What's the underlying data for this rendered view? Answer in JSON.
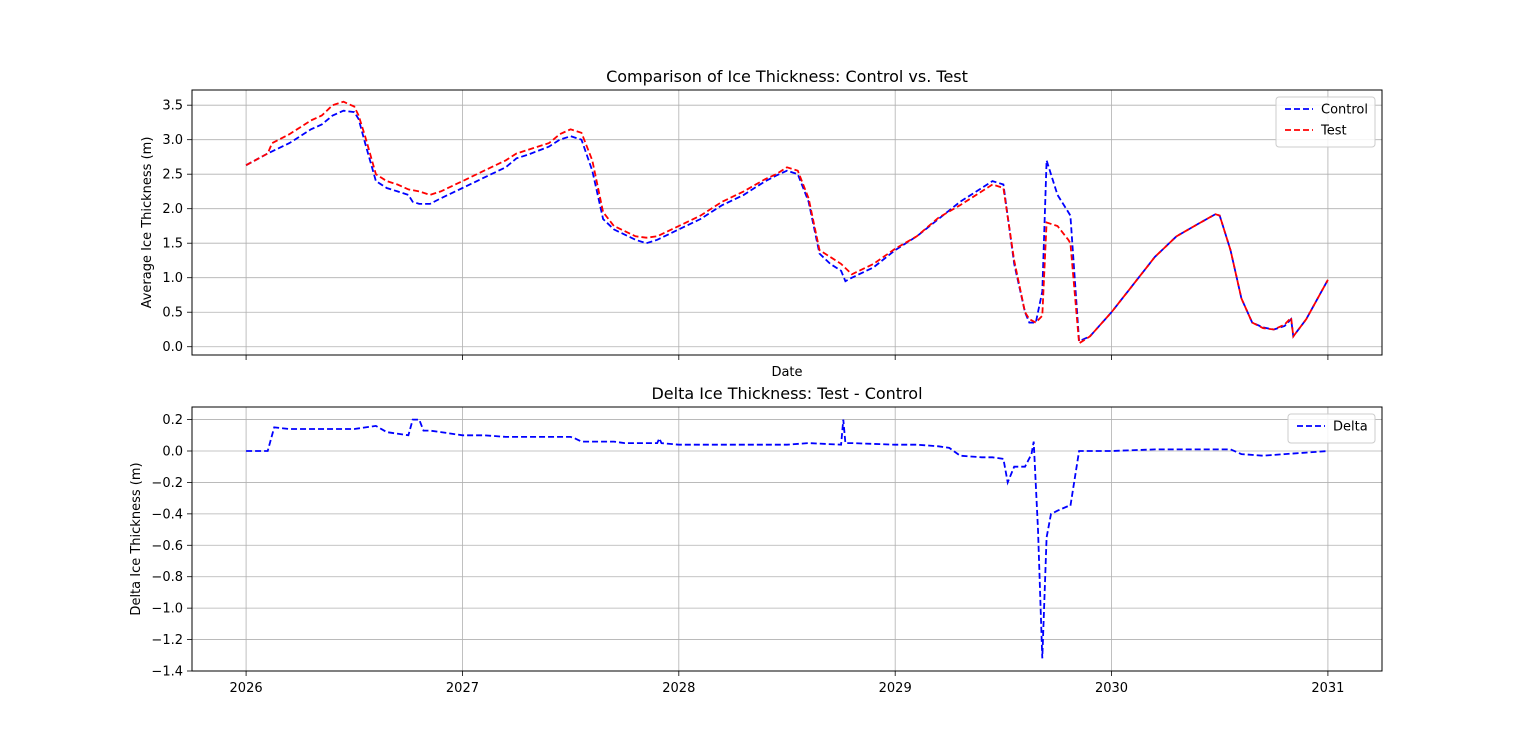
{
  "chart_data": [
    {
      "type": "line",
      "title": "Comparison of Ice Thickness: Control vs. Test",
      "xlabel": "Date",
      "ylabel": "Average Ice Thickness (m)",
      "xlim": [
        2025.75,
        2031.25
      ],
      "ylim": [
        -0.12,
        3.72
      ],
      "x_ticks": [
        2026,
        2027,
        2028,
        2029,
        2030,
        2031
      ],
      "x_tick_labels_shown": false,
      "y_ticks": [
        0.0,
        0.5,
        1.0,
        1.5,
        2.0,
        2.5,
        3.0,
        3.5
      ],
      "y_tick_labels": [
        "0.0",
        "0.5",
        "1.0",
        "1.5",
        "2.0",
        "2.5",
        "3.0",
        "3.5"
      ],
      "grid": true,
      "legend_position": "top-right",
      "series": [
        {
          "name": "Control",
          "color": "#0000ff",
          "style": "dashed",
          "x": [
            2026.0,
            2026.1,
            2026.2,
            2026.3,
            2026.35,
            2026.4,
            2026.45,
            2026.5,
            2026.52,
            2026.55,
            2026.6,
            2026.65,
            2026.7,
            2026.75,
            2026.77,
            2026.8,
            2026.85,
            2026.9,
            2027.0,
            2027.1,
            2027.2,
            2027.25,
            2027.3,
            2027.4,
            2027.45,
            2027.5,
            2027.55,
            2027.6,
            2027.65,
            2027.7,
            2027.8,
            2027.85,
            2027.9,
            2028.0,
            2028.1,
            2028.2,
            2028.3,
            2028.4,
            2028.45,
            2028.5,
            2028.55,
            2028.6,
            2028.65,
            2028.7,
            2028.75,
            2028.77,
            2028.8,
            2028.9,
            2029.0,
            2029.1,
            2029.2,
            2029.3,
            2029.4,
            2029.45,
            2029.5,
            2029.55,
            2029.6,
            2029.62,
            2029.65,
            2029.68,
            2029.7,
            2029.75,
            2029.8,
            2029.81,
            2029.85,
            2029.9,
            2030.0,
            2030.1,
            2030.2,
            2030.3,
            2030.4,
            2030.48,
            2030.5,
            2030.55,
            2030.6,
            2030.65,
            2030.7,
            2030.75,
            2030.8,
            2030.83,
            2030.84,
            2030.9,
            2031.0
          ],
          "values": [
            2.63,
            2.8,
            2.95,
            3.15,
            3.22,
            3.35,
            3.42,
            3.4,
            3.3,
            2.95,
            2.4,
            2.3,
            2.25,
            2.2,
            2.1,
            2.07,
            2.07,
            2.15,
            2.3,
            2.45,
            2.6,
            2.73,
            2.78,
            2.9,
            3.0,
            3.05,
            3.0,
            2.55,
            1.85,
            1.7,
            1.55,
            1.5,
            1.55,
            1.7,
            1.85,
            2.05,
            2.2,
            2.4,
            2.48,
            2.55,
            2.5,
            2.1,
            1.35,
            1.2,
            1.1,
            0.95,
            1.0,
            1.15,
            1.4,
            1.6,
            1.85,
            2.1,
            2.3,
            2.4,
            2.35,
            1.2,
            0.5,
            0.35,
            0.35,
            0.8,
            2.7,
            2.2,
            1.95,
            1.9,
            0.08,
            0.15,
            0.5,
            0.9,
            1.3,
            1.6,
            1.78,
            1.92,
            1.9,
            1.4,
            0.7,
            0.35,
            0.28,
            0.25,
            0.3,
            0.4,
            0.15,
            0.4,
            0.97
          ]
        },
        {
          "name": "Test",
          "color": "#ff0000",
          "style": "dashed",
          "x": [
            2026.0,
            2026.1,
            2026.12,
            2026.2,
            2026.3,
            2026.35,
            2026.4,
            2026.45,
            2026.5,
            2026.52,
            2026.55,
            2026.6,
            2026.65,
            2026.7,
            2026.75,
            2026.8,
            2026.85,
            2026.9,
            2027.0,
            2027.1,
            2027.2,
            2027.25,
            2027.3,
            2027.4,
            2027.45,
            2027.5,
            2027.55,
            2027.6,
            2027.65,
            2027.7,
            2027.8,
            2027.85,
            2027.9,
            2028.0,
            2028.1,
            2028.2,
            2028.3,
            2028.4,
            2028.45,
            2028.5,
            2028.55,
            2028.6,
            2028.65,
            2028.7,
            2028.75,
            2028.8,
            2028.9,
            2029.0,
            2029.1,
            2029.2,
            2029.3,
            2029.4,
            2029.45,
            2029.5,
            2029.55,
            2029.6,
            2029.62,
            2029.65,
            2029.68,
            2029.7,
            2029.75,
            2029.8,
            2029.81,
            2029.85,
            2029.9,
            2030.0,
            2030.1,
            2030.2,
            2030.3,
            2030.4,
            2030.48,
            2030.5,
            2030.55,
            2030.6,
            2030.65,
            2030.7,
            2030.75,
            2030.8,
            2030.83,
            2030.84,
            2030.9,
            2031.0
          ],
          "values": [
            2.63,
            2.8,
            2.95,
            3.08,
            3.28,
            3.35,
            3.5,
            3.55,
            3.48,
            3.35,
            3.05,
            2.5,
            2.4,
            2.35,
            2.28,
            2.25,
            2.2,
            2.25,
            2.4,
            2.55,
            2.7,
            2.8,
            2.85,
            2.95,
            3.08,
            3.15,
            3.1,
            2.7,
            1.95,
            1.75,
            1.6,
            1.58,
            1.6,
            1.75,
            1.9,
            2.1,
            2.25,
            2.43,
            2.5,
            2.6,
            2.55,
            2.15,
            1.4,
            1.3,
            1.2,
            1.05,
            1.2,
            1.42,
            1.6,
            1.87,
            2.05,
            2.25,
            2.35,
            2.3,
            1.25,
            0.5,
            0.4,
            0.35,
            0.45,
            1.8,
            1.75,
            1.55,
            1.5,
            0.05,
            0.15,
            0.5,
            0.9,
            1.3,
            1.6,
            1.78,
            1.92,
            1.9,
            1.4,
            0.7,
            0.35,
            0.27,
            0.25,
            0.32,
            0.42,
            0.15,
            0.4,
            0.97
          ]
        }
      ]
    },
    {
      "type": "line",
      "title": "Delta Ice Thickness: Test - Control",
      "xlabel": "",
      "ylabel": "Delta Ice Thickness (m)",
      "xlim": [
        2025.75,
        2031.25
      ],
      "ylim": [
        -1.4,
        0.28
      ],
      "x_ticks": [
        2026,
        2027,
        2028,
        2029,
        2030,
        2031
      ],
      "x_tick_labels": [
        "2026",
        "2027",
        "2028",
        "2029",
        "2030",
        "2031"
      ],
      "y_ticks": [
        -1.4,
        -1.2,
        -1.0,
        -0.8,
        -0.6,
        -0.4,
        -0.2,
        0.0,
        0.2
      ],
      "y_tick_labels": [
        "−1.4",
        "−1.2",
        "−1.0",
        "−0.8",
        "−0.6",
        "−0.4",
        "−0.2",
        "0.0",
        "0.2"
      ],
      "grid": true,
      "legend_position": "top-right",
      "series": [
        {
          "name": "Delta",
          "color": "#0000ff",
          "style": "dashed",
          "x": [
            2026.0,
            2026.1,
            2026.13,
            2026.2,
            2026.3,
            2026.4,
            2026.45,
            2026.5,
            2026.6,
            2026.65,
            2026.75,
            2026.77,
            2026.8,
            2026.82,
            2026.85,
            2026.9,
            2027.0,
            2027.1,
            2027.2,
            2027.3,
            2027.4,
            2027.5,
            2027.52,
            2027.55,
            2027.6,
            2027.7,
            2027.75,
            2027.8,
            2027.9,
            2027.91,
            2027.92,
            2028.0,
            2028.1,
            2028.2,
            2028.3,
            2028.4,
            2028.5,
            2028.6,
            2028.75,
            2028.76,
            2028.77,
            2028.8,
            2029.0,
            2029.1,
            2029.2,
            2029.25,
            2029.3,
            2029.4,
            2029.45,
            2029.5,
            2029.52,
            2029.55,
            2029.6,
            2029.63,
            2029.64,
            2029.66,
            2029.68,
            2029.7,
            2029.72,
            2029.75,
            2029.8,
            2029.81,
            2029.85,
            2030.0,
            2030.2,
            2030.4,
            2030.5,
            2030.55,
            2030.6,
            2030.7,
            2030.8,
            2030.9,
            2031.0
          ],
          "values": [
            0.0,
            0.0,
            0.15,
            0.14,
            0.14,
            0.14,
            0.14,
            0.14,
            0.16,
            0.12,
            0.1,
            0.2,
            0.2,
            0.13,
            0.13,
            0.12,
            0.1,
            0.1,
            0.09,
            0.09,
            0.09,
            0.09,
            0.08,
            0.06,
            0.06,
            0.06,
            0.05,
            0.05,
            0.05,
            0.08,
            0.05,
            0.04,
            0.04,
            0.04,
            0.04,
            0.04,
            0.04,
            0.05,
            0.04,
            0.2,
            0.05,
            0.05,
            0.04,
            0.04,
            0.03,
            0.02,
            -0.03,
            -0.04,
            -0.04,
            -0.05,
            -0.2,
            -0.1,
            -0.1,
            -0.02,
            0.06,
            -0.5,
            -1.32,
            -0.55,
            -0.4,
            -0.38,
            -0.35,
            -0.35,
            0.0,
            0.0,
            0.01,
            0.01,
            0.01,
            0.01,
            -0.02,
            -0.03,
            -0.02,
            -0.01,
            0.0
          ]
        }
      ]
    }
  ]
}
